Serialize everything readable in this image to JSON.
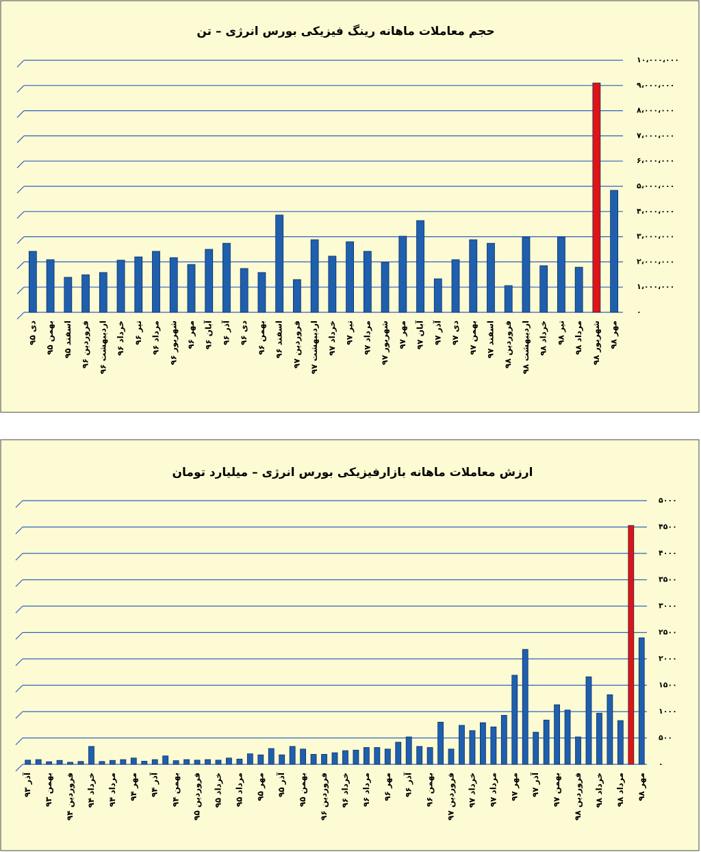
{
  "chart_data": [
    {
      "type": "bar",
      "title": "حجم معاملات ماهانه رینگ فیزیکی بورس انرژی – تن",
      "categories": [
        "دی ۹۵",
        "بهمن ۹۵",
        "اسفند ۹۵",
        "فروردین ۹۶",
        "اردیبهشت ۹۶",
        "خرداد ۹۶",
        "تیر ۹۶",
        "مرداد ۹۶",
        "شهریور ۹۶",
        "مهر ۹۶",
        "آبان ۹۶",
        "آذر ۹۶",
        "دی ۹۶",
        "بهمن ۹۶",
        "اسفند ۹۶",
        "فروردین ۹۷",
        "اردیبهشت ۹۷",
        "خرداد ۹۷",
        "تیر ۹۷",
        "مرداد ۹۷",
        "شهریور ۹۷",
        "مهر ۹۷",
        "آبان ۹۷",
        "آذر ۹۷",
        "دی ۹۷",
        "بهمن ۹۷",
        "اسفند ۹۷",
        "فروردین ۹۸",
        "اردیبهشت ۹۸",
        "خرداد ۹۸",
        "تیر ۹۸",
        "مرداد ۹۸",
        "شهریور ۹۸",
        "مهر ۹۸"
      ],
      "values": [
        2420000,
        2090000,
        1390000,
        1490000,
        1580000,
        2070000,
        2200000,
        2420000,
        2170000,
        1900000,
        2500000,
        2740000,
        1740000,
        1580000,
        3860000,
        1300000,
        2880000,
        2230000,
        2800000,
        2420000,
        1980000,
        3020000,
        3640000,
        1330000,
        2090000,
        2880000,
        2740000,
        1060000,
        2990000,
        1850000,
        2990000,
        1790000,
        9100000,
        4840000
      ],
      "colors": [
        "#1f5fad",
        "#1f5fad",
        "#1f5fad",
        "#1f5fad",
        "#1f5fad",
        "#1f5fad",
        "#1f5fad",
        "#1f5fad",
        "#1f5fad",
        "#1f5fad",
        "#1f5fad",
        "#1f5fad",
        "#1f5fad",
        "#1f5fad",
        "#1f5fad",
        "#1f5fad",
        "#1f5fad",
        "#1f5fad",
        "#1f5fad",
        "#1f5fad",
        "#1f5fad",
        "#1f5fad",
        "#1f5fad",
        "#1f5fad",
        "#1f5fad",
        "#1f5fad",
        "#1f5fad",
        "#1f5fad",
        "#1f5fad",
        "#1f5fad",
        "#1f5fad",
        "#1f5fad",
        "#e01414",
        "#1f5fad"
      ],
      "ylim": [
        0,
        10000000
      ],
      "yticks": [
        {
          "value": 0,
          "label": "۰"
        },
        {
          "value": 1000000,
          "label": "۱،۰۰۰،۰۰۰"
        },
        {
          "value": 2000000,
          "label": "۲،۰۰۰،۰۰۰"
        },
        {
          "value": 3000000,
          "label": "۳،۰۰۰،۰۰۰"
        },
        {
          "value": 4000000,
          "label": "۴،۰۰۰،۰۰۰"
        },
        {
          "value": 5000000,
          "label": "۵،۰۰۰،۰۰۰"
        },
        {
          "value": 6000000,
          "label": "۶،۰۰۰،۰۰۰"
        },
        {
          "value": 7000000,
          "label": "۷،۰۰۰،۰۰۰"
        },
        {
          "value": 8000000,
          "label": "۸،۰۰۰،۰۰۰"
        },
        {
          "value": 9000000,
          "label": "۹،۰۰۰،۰۰۰"
        },
        {
          "value": 10000000,
          "label": "۱۰،۰۰۰،۰۰۰"
        }
      ],
      "grid": true
    },
    {
      "type": "bar",
      "title": "ارزش معاملات ماهانه بازارفیزیکی بورس انرژی – میلیارد تومان",
      "categories": [
        "آذر ۹۳",
        null,
        "بهمن ۹۳",
        null,
        "فروردین ۹۴",
        null,
        "خرداد ۹۴",
        null,
        "مرداد ۹۴",
        null,
        "مهر ۹۴",
        null,
        "آذر ۹۴",
        null,
        "بهمن ۹۴",
        null,
        "فروردین ۹۵",
        null,
        "خرداد ۹۵",
        null,
        "مرداد ۹۵",
        null,
        "مهر ۹۵",
        null,
        "آذر ۹۵",
        null,
        "بهمن ۹۵",
        null,
        "فروردین ۹۶",
        null,
        "خرداد ۹۶",
        null,
        "مرداد ۹۶",
        null,
        "مهر ۹۶",
        null,
        "آذر ۹۶",
        null,
        "بهمن ۹۶",
        null,
        "فروردین ۹۷",
        null,
        "خرداد ۹۷",
        null,
        "مرداد ۹۷",
        null,
        "مهر ۹۷",
        null,
        "آذر ۹۷",
        null,
        "بهمن ۹۷",
        null,
        "فروردین ۹۸",
        null,
        "خرداد ۹۸",
        null,
        "مرداد ۹۸",
        null,
        "مهر ۹۸"
      ],
      "values": [
        80,
        90,
        50,
        75,
        40,
        55,
        340,
        55,
        75,
        90,
        120,
        60,
        90,
        160,
        70,
        90,
        80,
        90,
        80,
        120,
        100,
        200,
        180,
        300,
        180,
        340,
        290,
        190,
        190,
        220,
        260,
        270,
        320,
        320,
        290,
        420,
        520,
        340,
        320,
        800,
        290,
        740,
        640,
        790,
        710,
        930,
        1690,
        2180,
        610,
        840,
        1130,
        1030,
        520,
        1660,
        970,
        1320,
        830,
        4530,
        2400
      ],
      "colors": [
        "#1f5fad",
        "#1f5fad",
        "#1f5fad",
        "#1f5fad",
        "#1f5fad",
        "#1f5fad",
        "#1f5fad",
        "#1f5fad",
        "#1f5fad",
        "#1f5fad",
        "#1f5fad",
        "#1f5fad",
        "#1f5fad",
        "#1f5fad",
        "#1f5fad",
        "#1f5fad",
        "#1f5fad",
        "#1f5fad",
        "#1f5fad",
        "#1f5fad",
        "#1f5fad",
        "#1f5fad",
        "#1f5fad",
        "#1f5fad",
        "#1f5fad",
        "#1f5fad",
        "#1f5fad",
        "#1f5fad",
        "#1f5fad",
        "#1f5fad",
        "#1f5fad",
        "#1f5fad",
        "#1f5fad",
        "#1f5fad",
        "#1f5fad",
        "#1f5fad",
        "#1f5fad",
        "#1f5fad",
        "#1f5fad",
        "#1f5fad",
        "#1f5fad",
        "#1f5fad",
        "#1f5fad",
        "#1f5fad",
        "#1f5fad",
        "#1f5fad",
        "#1f5fad",
        "#1f5fad",
        "#1f5fad",
        "#1f5fad",
        "#1f5fad",
        "#1f5fad",
        "#1f5fad",
        "#1f5fad",
        "#1f5fad",
        "#1f5fad",
        "#1f5fad",
        "#e01414",
        "#1f5fad"
      ],
      "ylim": [
        0,
        5000
      ],
      "yticks": [
        {
          "value": 0,
          "label": "۰"
        },
        {
          "value": 500,
          "label": "۵۰۰"
        },
        {
          "value": 1000,
          "label": "۱۰۰۰"
        },
        {
          "value": 1500,
          "label": "۱۵۰۰"
        },
        {
          "value": 2000,
          "label": "۲۰۰۰"
        },
        {
          "value": 2500,
          "label": "۲۵۰۰"
        },
        {
          "value": 3000,
          "label": "۳۰۰۰"
        },
        {
          "value": 3500,
          "label": "۳۵۰۰"
        },
        {
          "value": 4000,
          "label": "۴۰۰۰"
        },
        {
          "value": 4500,
          "label": "۴۵۰۰"
        },
        {
          "value": 5000,
          "label": "۵۰۰۰"
        }
      ],
      "grid": true
    }
  ]
}
